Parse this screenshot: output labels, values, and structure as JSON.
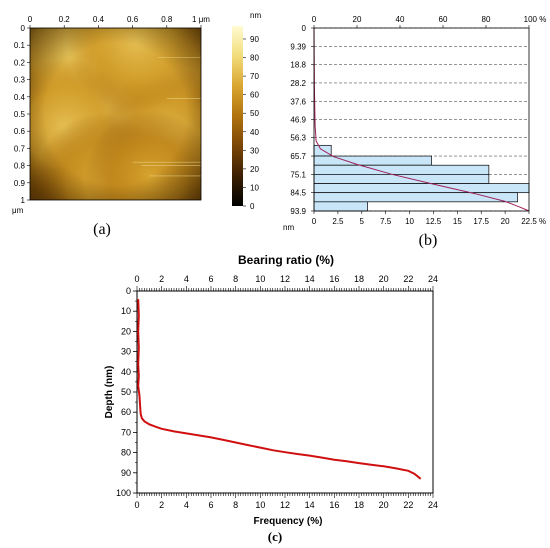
{
  "panel_labels": {
    "a": "(a)",
    "b": "(b)",
    "c": "(c)"
  },
  "chart_data": [
    {
      "panel": "a",
      "type": "heatmap",
      "title": "",
      "x_ticks": [
        "0",
        "0.2",
        "0.4",
        "0.6",
        "0.8",
        "1 μm"
      ],
      "y_ticks": [
        "0",
        "0.1",
        "0.2",
        "0.3",
        "0.4",
        "0.5",
        "0.6",
        "0.7",
        "0.8",
        "0.9",
        "1"
      ],
      "y_unit_label": "μm",
      "xlim": [
        0,
        1
      ],
      "ylim": [
        0,
        1
      ],
      "colorbar": {
        "unit": "nm",
        "ticks": [
          "90",
          "80",
          "70",
          "60",
          "50",
          "40",
          "30",
          "20",
          "10",
          "0"
        ],
        "range": [
          0,
          97
        ],
        "colors": [
          "#000000",
          "#3a1f02",
          "#7a4607",
          "#b0730d",
          "#d9a630",
          "#f2dc7a",
          "#fffbd2"
        ]
      },
      "height_peaks": [
        {
          "x": 0.52,
          "y": 0.52,
          "height": 92
        },
        {
          "x": 0.4,
          "y": 0.28,
          "height": 82
        },
        {
          "x": 0.24,
          "y": 0.14,
          "height": 74
        },
        {
          "x": 0.78,
          "y": 0.25,
          "height": 70
        },
        {
          "x": 0.2,
          "y": 0.58,
          "height": 72
        },
        {
          "x": 0.82,
          "y": 0.62,
          "height": 70
        },
        {
          "x": 0.42,
          "y": 0.88,
          "height": 66
        },
        {
          "x": 0.7,
          "y": 0.86,
          "height": 64
        },
        {
          "x": 0.62,
          "y": 0.08,
          "height": 72
        }
      ]
    },
    {
      "panel": "b",
      "type": "bar",
      "orientation": "horizontal",
      "top_axis_ticks": [
        "0",
        "20",
        "40",
        "60",
        "80",
        "100 %"
      ],
      "bottom_axis_ticks": [
        "0",
        "2.5",
        "5",
        "7.5",
        "10",
        "12.5",
        "15",
        "17.5",
        "20",
        "22.5"
      ],
      "bottom_axis_unit": "%",
      "y_ticks": [
        "0",
        "9.39",
        "18.8",
        "28.2",
        "37.6",
        "46.9",
        "56.3",
        "65.7",
        "75.1",
        "84.5",
        "93.9"
      ],
      "y_unit_label": "nm",
      "y_range": [
        0,
        93.9
      ],
      "x_range": [
        0,
        22.5
      ],
      "bins": [
        {
          "from": 60.2,
          "to": 65.7,
          "frequency": 1.8
        },
        {
          "from": 65.7,
          "to": 70.4,
          "frequency": 12.3
        },
        {
          "from": 70.4,
          "to": 75.1,
          "frequency": 18.3
        },
        {
          "from": 75.1,
          "to": 79.8,
          "frequency": 18.3
        },
        {
          "from": 79.8,
          "to": 84.5,
          "frequency": 22.5
        },
        {
          "from": 84.5,
          "to": 89.2,
          "frequency": 21.3
        },
        {
          "from": 89.2,
          "to": 93.9,
          "frequency": 5.6
        }
      ],
      "bearing_curve": [
        {
          "depth": 0,
          "percent": 0
        },
        {
          "depth": 30,
          "percent": 0.2
        },
        {
          "depth": 50,
          "percent": 0.5
        },
        {
          "depth": 58,
          "percent": 1
        },
        {
          "depth": 62,
          "percent": 3
        },
        {
          "depth": 66,
          "percent": 9
        },
        {
          "depth": 70,
          "percent": 20
        },
        {
          "depth": 75,
          "percent": 36
        },
        {
          "depth": 80,
          "percent": 55
        },
        {
          "depth": 85,
          "percent": 75
        },
        {
          "depth": 89,
          "percent": 89
        },
        {
          "depth": 92,
          "percent": 96
        },
        {
          "depth": 93.9,
          "percent": 100
        }
      ],
      "bar_color": "#c8e6f8",
      "curve_color": "#a0205a",
      "grid": true
    },
    {
      "panel": "c",
      "type": "line",
      "xlabel_top": "Bearing ratio (%)",
      "xlabel": "Frequency (%)",
      "ylabel": "Depth (nm)",
      "x_ticks": [
        "0",
        "2",
        "4",
        "6",
        "8",
        "10",
        "12",
        "14",
        "16",
        "18",
        "20",
        "22",
        "24"
      ],
      "y_ticks": [
        "0",
        "10",
        "20",
        "30",
        "40",
        "50",
        "60",
        "70",
        "80",
        "90",
        "100"
      ],
      "xlim": [
        0,
        24
      ],
      "ylim": [
        0,
        100
      ],
      "series": [
        {
          "color": "#d01010",
          "points": [
            [
              0.1,
              4
            ],
            [
              0.15,
              12
            ],
            [
              0.1,
              20
            ],
            [
              0.15,
              28
            ],
            [
              0.1,
              36
            ],
            [
              0.15,
              42
            ],
            [
              0.1,
              47
            ],
            [
              0.2,
              52
            ],
            [
              0.25,
              57
            ],
            [
              0.3,
              61
            ],
            [
              0.4,
              63
            ],
            [
              0.6,
              64.5
            ],
            [
              1.0,
              66
            ],
            [
              1.5,
              67.2
            ],
            [
              2,
              68.2
            ],
            [
              3,
              69.5
            ],
            [
              4,
              70.5
            ],
            [
              5,
              71.5
            ],
            [
              6,
              72.5
            ],
            [
              7,
              73.7
            ],
            [
              8,
              75
            ],
            [
              9,
              76.3
            ],
            [
              10,
              77.5
            ],
            [
              11,
              78.8
            ],
            [
              12,
              79.8
            ],
            [
              13,
              80.7
            ],
            [
              14,
              81.5
            ],
            [
              15,
              82.5
            ],
            [
              16,
              83.5
            ],
            [
              17,
              84.3
            ],
            [
              18,
              85.2
            ],
            [
              19,
              86
            ],
            [
              20,
              86.8
            ],
            [
              21,
              87.8
            ],
            [
              22,
              89
            ],
            [
              22.5,
              90.5
            ],
            [
              22.8,
              92
            ],
            [
              23.0,
              93
            ]
          ]
        }
      ]
    }
  ]
}
